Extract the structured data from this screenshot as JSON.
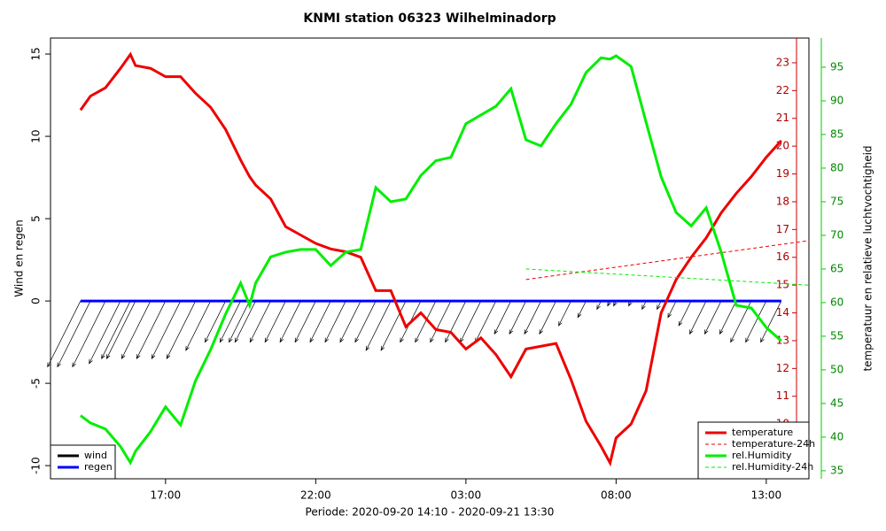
{
  "chart_data": {
    "type": "line",
    "title": "KNMI station 06323 Wilhelminadorp",
    "xlabel": "Periode: 2020-09-20 14:10 - 2020-09-21 13:30",
    "ylabel": "Wind en regen",
    "y2label": "temperatuur en relatieve luchtvochtigheid",
    "x": [
      14.17,
      14.5,
      15,
      15.5,
      15.83,
      16,
      16.5,
      17,
      17.5,
      18,
      18.5,
      19,
      19.5,
      19.8,
      20,
      20.5,
      21,
      21.5,
      22,
      22.5,
      23,
      23.5,
      24,
      24.5,
      25,
      25.5,
      26,
      26.5,
      27,
      27.5,
      28,
      28.5,
      29,
      29.5,
      30,
      30.5,
      31,
      31.5,
      31.8,
      32,
      32.5,
      33,
      33.5,
      34,
      34.5,
      35,
      35.5,
      36,
      36.5,
      37,
      37.5
    ],
    "xlim": [
      13.17,
      38.42
    ],
    "xticks": [
      {
        "value": 17,
        "label": "17:00"
      },
      {
        "value": 22,
        "label": "22:00"
      },
      {
        "value": 27,
        "label": "03:00"
      },
      {
        "value": 32,
        "label": "08:00"
      },
      {
        "value": 37,
        "label": "13:00"
      }
    ],
    "ylim": [
      -10.8,
      15.97
    ],
    "yticks": [
      -10,
      -5,
      0,
      5,
      10,
      15
    ],
    "y2lim": [
      8.03,
      23.89
    ],
    "y2ticks": [
      10,
      11,
      12,
      13,
      14,
      15,
      16,
      17,
      18,
      19,
      20,
      21,
      22,
      23
    ],
    "y3lim": [
      33.8,
      99.34
    ],
    "y3ticks": [
      35,
      40,
      45,
      50,
      55,
      60,
      65,
      70,
      75,
      80,
      85,
      90,
      95
    ],
    "series": [
      {
        "name": "wind",
        "color": "#000000",
        "axis": "y",
        "style": "arrows",
        "legend": "bottom-left",
        "values": [
          4,
          4,
          4,
          3.8,
          3.5,
          3.5,
          3.5,
          3.5,
          3.5,
          3.5,
          3,
          2.5,
          2.5,
          2.5,
          2.5,
          2.5,
          2.5,
          2.5,
          2.5,
          2.5,
          2.5,
          2.5,
          2.5,
          3,
          3,
          2.5,
          2.5,
          2.5,
          2.5,
          2.5,
          2.5,
          2,
          2,
          2,
          2,
          1.5,
          1,
          0.5,
          0.3,
          0.3,
          0.3,
          0.5,
          0.5,
          1,
          1.5,
          2,
          2,
          2,
          2.5,
          2.5,
          2.5
        ]
      },
      {
        "name": "regen",
        "color": "#0000ff",
        "axis": "y",
        "style": "solid",
        "legend": "bottom-left",
        "values": [
          0,
          0,
          0,
          0,
          0,
          0,
          0,
          0,
          0,
          0,
          0,
          0,
          0,
          0,
          0,
          0,
          0,
          0,
          0,
          0,
          0,
          0,
          0,
          0,
          0,
          0,
          0,
          0,
          0,
          0,
          0,
          0,
          0,
          0,
          0,
          0,
          0,
          0,
          0,
          0,
          0,
          0,
          0,
          0,
          0,
          0,
          0,
          0,
          0,
          0,
          0
        ]
      },
      {
        "name": "temperature",
        "color": "#ee0000",
        "axis": "y2",
        "style": "solid",
        "legend": "bottom-right",
        "values": [
          21.3,
          21.8,
          22.1,
          22.8,
          23.3,
          22.9,
          22.8,
          22.5,
          22.5,
          21.9,
          21.4,
          20.6,
          19.5,
          18.9,
          18.6,
          18.1,
          17.1,
          16.8,
          16.5,
          16.3,
          16.2,
          16.0,
          14.8,
          14.8,
          13.5,
          14.0,
          13.4,
          13.3,
          12.7,
          13.1,
          12.5,
          11.7,
          12.7,
          12.8,
          12.9,
          11.6,
          10.1,
          9.2,
          8.6,
          9.5,
          10.0,
          11.2,
          14.0,
          15.2,
          16.0,
          16.7,
          17.6,
          18.3,
          18.9,
          19.6,
          20.2
        ]
      },
      {
        "name": "temperature-24h",
        "color": "#ee0000",
        "axis": "y2",
        "style": "dashed",
        "legend": "bottom-right",
        "x": [
          29,
          38.42
        ],
        "values": [
          15.2,
          16.6
        ]
      },
      {
        "name": "rel.Humidity",
        "color": "#00ee00",
        "axis": "y3",
        "style": "solid",
        "legend": "bottom-right",
        "values": [
          43.2,
          42.1,
          41.2,
          38.6,
          36.2,
          37.9,
          40.8,
          44.5,
          41.8,
          48.4,
          53,
          58.3,
          62.9,
          59.6,
          62.9,
          66.8,
          67.5,
          67.9,
          67.9,
          65.5,
          67.5,
          67.9,
          77.1,
          75,
          75.4,
          78.9,
          81.1,
          81.6,
          86.6,
          87.9,
          89.2,
          91.8,
          84.2,
          83.3,
          86.6,
          89.5,
          94.2,
          96.4,
          96.2,
          96.7,
          95.1,
          86.8,
          78.7,
          73.4,
          71.4,
          74.1,
          67.5,
          59.6,
          59.2,
          56.3,
          54.3
        ]
      },
      {
        "name": "rel.Humidity-24h",
        "color": "#00ee00",
        "axis": "y3",
        "style": "dashed",
        "legend": "bottom-right",
        "x": [
          29,
          38.42
        ],
        "values": [
          65,
          62.6
        ]
      }
    ]
  }
}
